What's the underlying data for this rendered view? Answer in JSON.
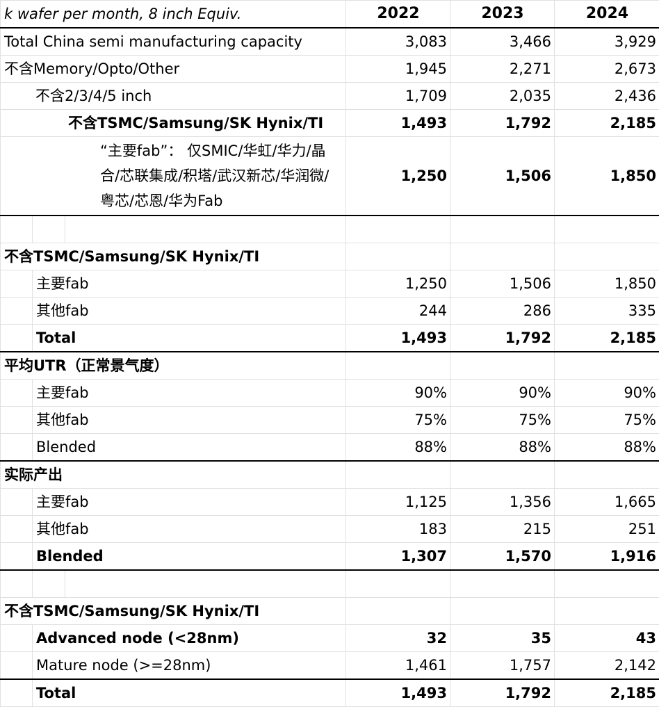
{
  "header": {
    "unit_label": "k wafer per month, 8 inch Equiv.",
    "years": [
      "2022",
      "2023",
      "2024"
    ]
  },
  "capacity": {
    "total": {
      "label": "Total China semi manufacturing capacity",
      "values": [
        "3,083",
        "3,466",
        "3,929"
      ]
    },
    "excl_memory": {
      "label": "不含Memory/Opto/Other",
      "values": [
        "1,945",
        "2,271",
        "2,673"
      ]
    },
    "excl_small_inch": {
      "label": "不含2/3/4/5 inch",
      "values": [
        "1,709",
        "2,035",
        "2,436"
      ]
    },
    "excl_foreign": {
      "label": "不含TSMC/Samsung/SK Hynix/TI",
      "values": [
        "1,493",
        "1,792",
        "2,185"
      ]
    },
    "main_fab": {
      "label": "“主要fab”： 仅SMIC/华虹/华力/晶合/芯联集成/积塔/武汉新芯/华润微/粤芯/芯恩/华为Fab",
      "values": [
        "1,250",
        "1,506",
        "1,850"
      ]
    }
  },
  "split": {
    "title": "不含TSMC/Samsung/SK Hynix/TI",
    "main": {
      "label": "主要fab",
      "values": [
        "1,250",
        "1,506",
        "1,850"
      ]
    },
    "other": {
      "label": "其他fab",
      "values": [
        "244",
        "286",
        "335"
      ]
    },
    "total": {
      "label": "Total",
      "values": [
        "1,493",
        "1,792",
        "2,185"
      ]
    }
  },
  "utr": {
    "title": "平均UTR（正常景气度）",
    "main": {
      "label": "主要fab",
      "values": [
        "90%",
        "90%",
        "90%"
      ]
    },
    "other": {
      "label": "其他fab",
      "values": [
        "75%",
        "75%",
        "75%"
      ]
    },
    "blended": {
      "label": "Blended",
      "values": [
        "88%",
        "88%",
        "88%"
      ]
    }
  },
  "output": {
    "title": "实际产出",
    "main": {
      "label": "主要fab",
      "values": [
        "1,125",
        "1,356",
        "1,665"
      ]
    },
    "other": {
      "label": "其他fab",
      "values": [
        "183",
        "215",
        "251"
      ]
    },
    "blended": {
      "label": "Blended",
      "values": [
        "1,307",
        "1,570",
        "1,916"
      ]
    }
  },
  "node": {
    "title": "不含TSMC/Samsung/SK Hynix/TI",
    "advanced": {
      "label": "Advanced node (<28nm)",
      "values": [
        "32",
        "35",
        "43"
      ]
    },
    "mature": {
      "label": "Mature node (>=28nm)",
      "values": [
        "1,461",
        "1,757",
        "2,142"
      ]
    },
    "total": {
      "label": "Total",
      "values": [
        "1,493",
        "1,792",
        "2,185"
      ]
    }
  },
  "colors": {
    "shade": "#dce6f0",
    "border": "#000000"
  }
}
